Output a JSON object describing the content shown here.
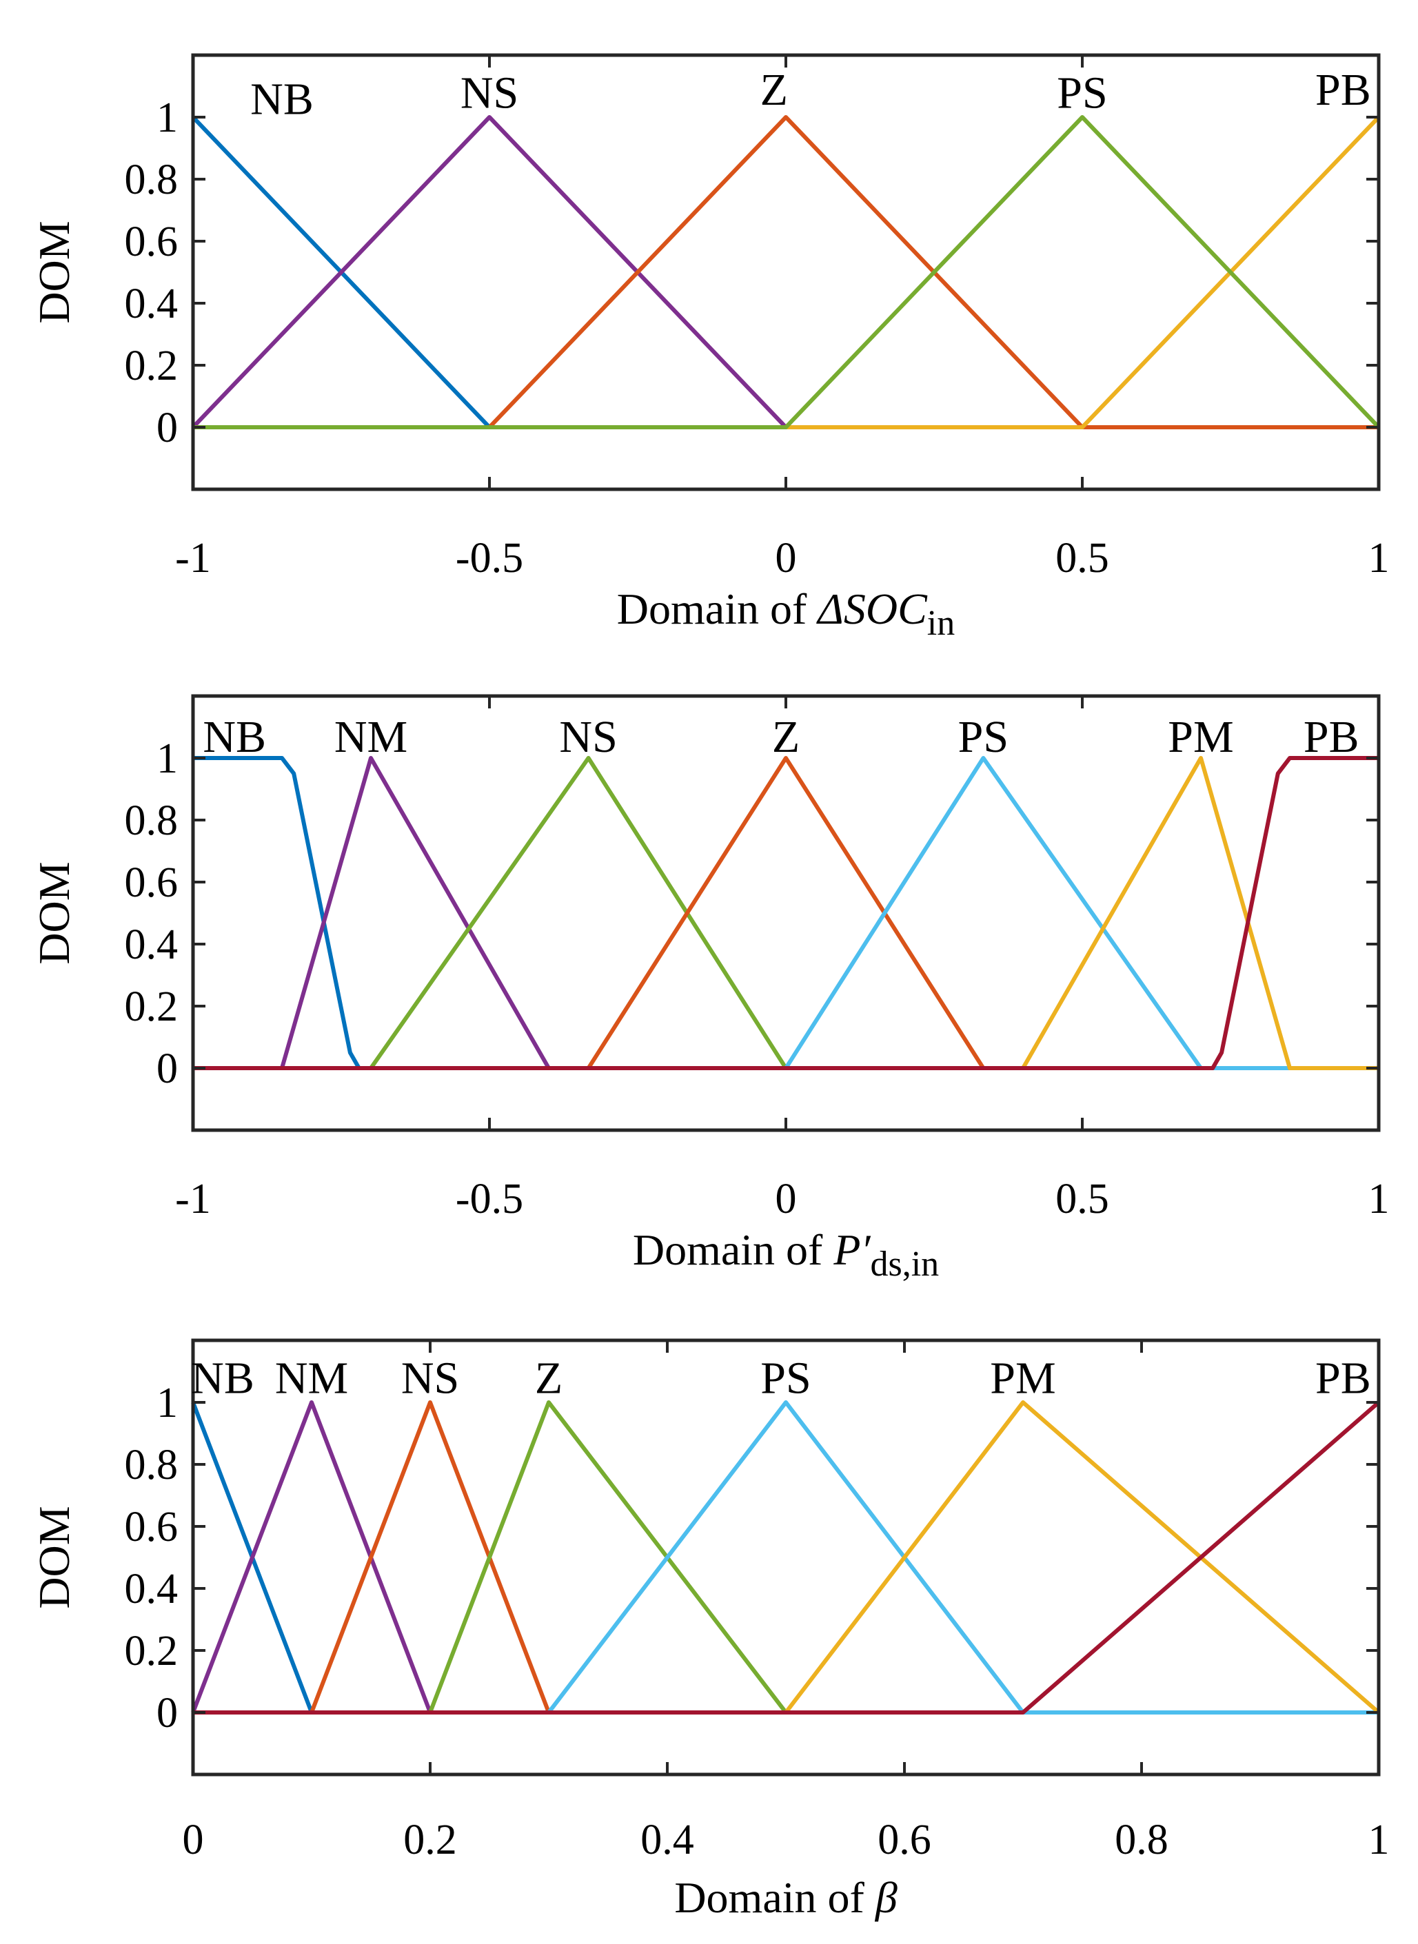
{
  "chart_data": [
    {
      "type": "line",
      "ylabel": "DOM",
      "xlabel_parts": [
        {
          "text": "Domain of ",
          "italic": false,
          "sub": false
        },
        {
          "text": "ΔSOC",
          "italic": true,
          "sub": false
        },
        {
          "text": "in",
          "italic": false,
          "sub": true
        }
      ],
      "xlim": [
        -1,
        1
      ],
      "ylim": [
        -0.2,
        1.2
      ],
      "x_ticks": [
        -1,
        -0.5,
        0,
        0.5,
        1
      ],
      "x_tick_labels": [
        "-1",
        "-0.5",
        "0",
        "0.5",
        "1"
      ],
      "y_ticks": [
        0,
        0.2,
        0.4,
        0.6,
        0.8,
        1
      ],
      "y_tick_labels": [
        "0",
        "0.2",
        "0.4",
        "0.6",
        "0.8",
        "1"
      ],
      "grid": false,
      "series": [
        {
          "name": "NB",
          "color": "#0072BD",
          "x": [
            -1,
            -0.5,
            1
          ],
          "y": [
            1,
            0,
            0
          ]
        },
        {
          "name": "NS",
          "color": "#7E2F8E",
          "x": [
            -1,
            -0.5,
            0,
            1
          ],
          "y": [
            0,
            1,
            0,
            0
          ]
        },
        {
          "name": "Z",
          "color": "#D95319",
          "x": [
            -1,
            -0.5,
            0,
            0.5,
            1
          ],
          "y": [
            0,
            0,
            1,
            0,
            0
          ]
        },
        {
          "name": "PB",
          "color": "#EDB120",
          "x": [
            -1,
            0.5,
            1
          ],
          "y": [
            0,
            0,
            1
          ]
        },
        {
          "name": "PS",
          "color": "#77AC30",
          "x": [
            -1,
            0,
            0.5,
            1
          ],
          "y": [
            0,
            0,
            1,
            0
          ]
        }
      ],
      "mf_labels": [
        {
          "text": "NB",
          "x": -0.85,
          "y": 1.01
        },
        {
          "text": "NS",
          "x": -0.5,
          "y": 1.03
        },
        {
          "text": "Z",
          "x": -0.02,
          "y": 1.04
        },
        {
          "text": "PS",
          "x": 0.5,
          "y": 1.03
        },
        {
          "text": "PB",
          "x": 0.94,
          "y": 1.04
        }
      ]
    },
    {
      "type": "line",
      "ylabel": "DOM",
      "xlabel_parts": [
        {
          "text": "Domain of ",
          "italic": false,
          "sub": false
        },
        {
          "text": "P′",
          "italic": true,
          "sub": false
        },
        {
          "text": "ds,in",
          "italic": false,
          "sub": true
        }
      ],
      "xlim": [
        -1,
        1
      ],
      "ylim": [
        -0.2,
        1.2
      ],
      "x_ticks": [
        -1,
        -0.5,
        0,
        0.5,
        1
      ],
      "x_tick_labels": [
        "-1",
        "-0.5",
        "0",
        "0.5",
        "1"
      ],
      "y_ticks": [
        0,
        0.2,
        0.4,
        0.6,
        0.8,
        1
      ],
      "y_tick_labels": [
        "0",
        "0.2",
        "0.4",
        "0.6",
        "0.8",
        "1"
      ],
      "grid": false,
      "series": [
        {
          "name": "NB",
          "color": "#0072BD",
          "x": [
            -1,
            -0.85,
            -0.83,
            -0.735,
            -0.72,
            1
          ],
          "y": [
            1,
            1,
            0.95,
            0.05,
            0,
            0
          ]
        },
        {
          "name": "NM",
          "color": "#7E2F8E",
          "x": [
            -1,
            -0.85,
            -0.7,
            -0.4,
            1
          ],
          "y": [
            0,
            0,
            1,
            0,
            0
          ]
        },
        {
          "name": "NS",
          "color": "#77AC30",
          "x": [
            -1,
            -0.7,
            -0.333,
            0,
            1
          ],
          "y": [
            0,
            0,
            1,
            0,
            0
          ]
        },
        {
          "name": "Z",
          "color": "#D95319",
          "x": [
            -1,
            -0.333,
            0,
            0.333,
            1
          ],
          "y": [
            0,
            0,
            1,
            0,
            0
          ]
        },
        {
          "name": "PS",
          "color": "#4DBEEE",
          "x": [
            -1,
            0,
            0.333,
            0.7,
            1
          ],
          "y": [
            0,
            0,
            1,
            0,
            0
          ]
        },
        {
          "name": "PM",
          "color": "#EDB120",
          "x": [
            -1,
            0.4,
            0.7,
            0.85,
            1
          ],
          "y": [
            0,
            0,
            1,
            0,
            0
          ]
        },
        {
          "name": "PB",
          "color": "#A2142F",
          "x": [
            -1,
            0.72,
            0.735,
            0.83,
            0.85,
            1
          ],
          "y": [
            0,
            0,
            0.05,
            0.95,
            1,
            1
          ]
        }
      ],
      "mf_labels": [
        {
          "text": "NB",
          "x": -0.93,
          "y": 1.02
        },
        {
          "text": "NM",
          "x": -0.7,
          "y": 1.02
        },
        {
          "text": "NS",
          "x": -0.333,
          "y": 1.02
        },
        {
          "text": "Z",
          "x": 0,
          "y": 1.02
        },
        {
          "text": "PS",
          "x": 0.333,
          "y": 1.02
        },
        {
          "text": "PM",
          "x": 0.7,
          "y": 1.02
        },
        {
          "text": "PB",
          "x": 0.92,
          "y": 1.02
        }
      ]
    },
    {
      "type": "line",
      "ylabel": "DOM",
      "xlabel_parts": [
        {
          "text": "Domain of ",
          "italic": false,
          "sub": false
        },
        {
          "text": "β",
          "italic": true,
          "sub": false
        }
      ],
      "xlim": [
        0,
        1
      ],
      "ylim": [
        -0.2,
        1.2
      ],
      "x_ticks": [
        0,
        0.2,
        0.4,
        0.6,
        0.8,
        1
      ],
      "x_tick_labels": [
        "0",
        "0.2",
        "0.4",
        "0.6",
        "0.8",
        "1"
      ],
      "y_ticks": [
        0,
        0.2,
        0.4,
        0.6,
        0.8,
        1
      ],
      "y_tick_labels": [
        "0",
        "0.2",
        "0.4",
        "0.6",
        "0.8",
        "1"
      ],
      "grid": false,
      "series": [
        {
          "name": "NB",
          "color": "#0072BD",
          "x": [
            0,
            0.1,
            1
          ],
          "y": [
            1,
            0,
            0
          ]
        },
        {
          "name": "NM",
          "color": "#7E2F8E",
          "x": [
            0,
            0.1,
            0.2,
            1
          ],
          "y": [
            0,
            1,
            0,
            0
          ]
        },
        {
          "name": "NS",
          "color": "#D95319",
          "x": [
            0,
            0.1,
            0.2,
            0.3,
            1
          ],
          "y": [
            0,
            0,
            1,
            0,
            0
          ]
        },
        {
          "name": "Z",
          "color": "#77AC30",
          "x": [
            0,
            0.2,
            0.3,
            0.5,
            1
          ],
          "y": [
            0,
            0,
            1,
            0,
            0
          ]
        },
        {
          "name": "PS",
          "color": "#4DBEEE",
          "x": [
            0,
            0.3,
            0.5,
            0.7,
            1
          ],
          "y": [
            0,
            0,
            1,
            0,
            0
          ]
        },
        {
          "name": "PM",
          "color": "#EDB120",
          "x": [
            0,
            0.5,
            0.7,
            1
          ],
          "y": [
            0,
            0,
            1,
            0
          ]
        },
        {
          "name": "PB",
          "color": "#A2142F",
          "x": [
            0,
            0.7,
            1
          ],
          "y": [
            0,
            0,
            1
          ]
        }
      ],
      "mf_labels": [
        {
          "text": "NB",
          "x": 0.025,
          "y": 1.03
        },
        {
          "text": "NM",
          "x": 0.1,
          "y": 1.03
        },
        {
          "text": "NS",
          "x": 0.2,
          "y": 1.03
        },
        {
          "text": "Z",
          "x": 0.3,
          "y": 1.03
        },
        {
          "text": "PS",
          "x": 0.5,
          "y": 1.03
        },
        {
          "text": "PM",
          "x": 0.7,
          "y": 1.03
        },
        {
          "text": "PB",
          "x": 0.97,
          "y": 1.03
        }
      ]
    }
  ]
}
